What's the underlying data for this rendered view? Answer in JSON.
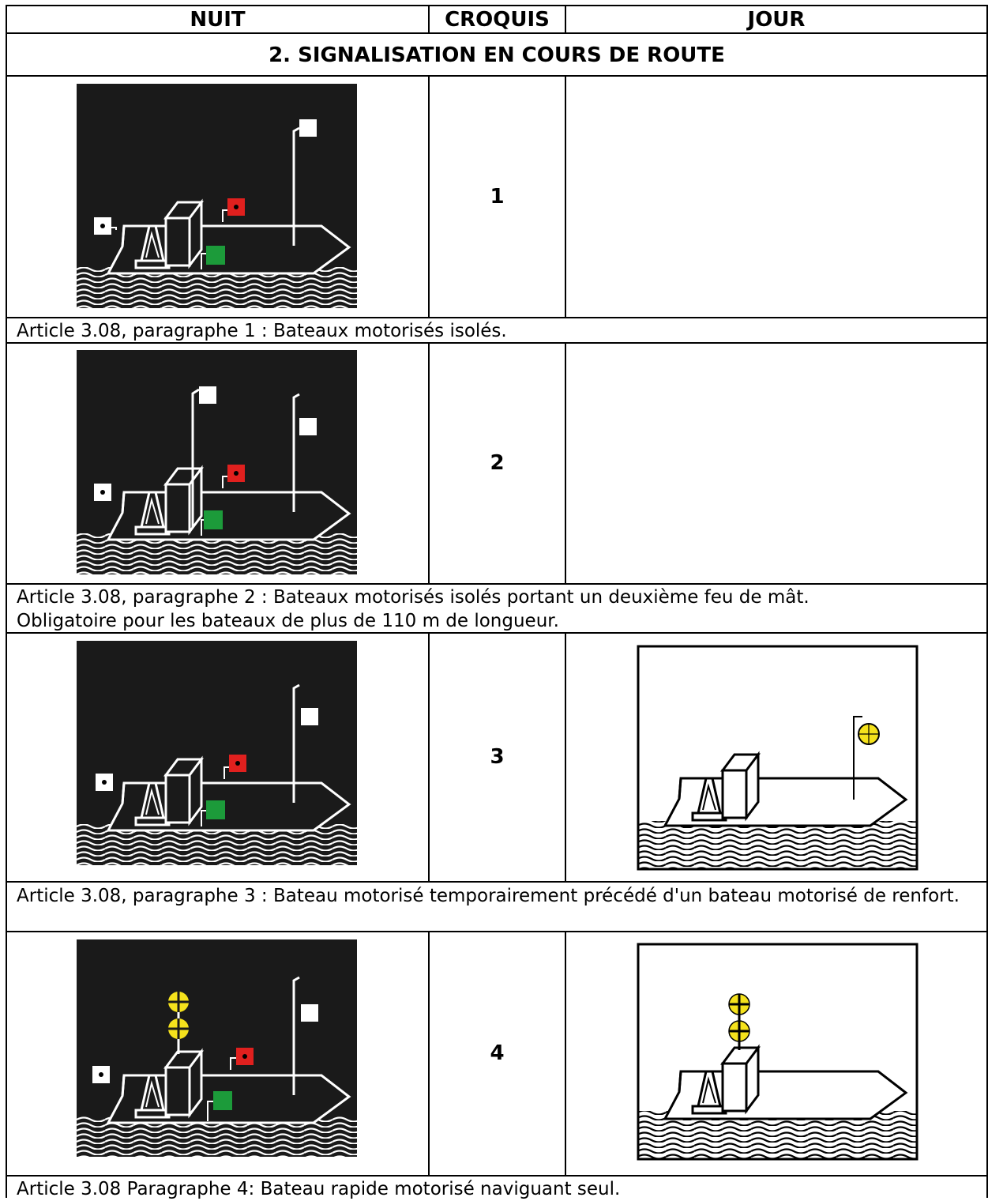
{
  "header": {
    "columns": [
      "NUIT",
      "CROQUIS",
      "JOUR"
    ]
  },
  "section": {
    "title": "2. SIGNALISATION EN COURS DE ROUTE"
  },
  "rows": [
    {
      "croquis": "1",
      "caption": [
        "Article 3.08, paragraphe 1 : Bateaux motorisés isolés."
      ]
    },
    {
      "croquis": "2",
      "caption": [
        "Article 3.08, paragraphe 2 : Bateaux motorisés isolés portant un deuxième feu de mât.",
        "Obligatoire pour les bateaux de plus de 110 m de longueur."
      ]
    },
    {
      "croquis": "3",
      "caption": [
        "Article 3.08, paragraphe 3 : Bateau motorisé temporairement précédé d'un bateau motorisé de renfort."
      ]
    },
    {
      "croquis": "4",
      "caption": [
        "Article 3.08 Paragraphe 4: Bateau rapide motorisé naviguant seul."
      ]
    }
  ]
}
